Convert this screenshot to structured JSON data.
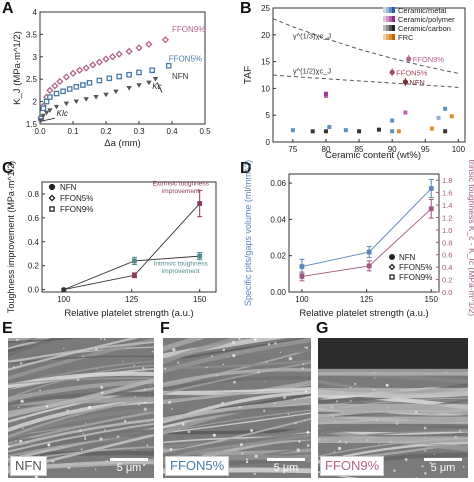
{
  "figure": {
    "panel_letters": [
      "A",
      "B",
      "C",
      "D",
      "E",
      "F",
      "G"
    ]
  },
  "chart_data": [
    {
      "panel": "A",
      "type": "scatter",
      "title": "",
      "xlabel": "Δa (mm)",
      "ylabel": "K_J (MPa·m^1/2)",
      "xlim": [
        0,
        0.5
      ],
      "ylim": [
        1.5,
        4
      ],
      "xticks": [
        "0.0",
        "0.1",
        "0.2",
        "0.3",
        "0.4",
        "0.5"
      ],
      "yticks": [
        "1.5",
        "2",
        "2.5",
        "3",
        "3.5",
        "4"
      ],
      "annotations": [
        "FFON9%",
        "FFON5%",
        "NFN",
        "Kc",
        "KIc"
      ],
      "series": [
        {
          "name": "FFON9%",
          "marker": "diamond",
          "color": "#b5628c",
          "x": [
            0.003,
            0.01,
            0.02,
            0.03,
            0.045,
            0.06,
            0.08,
            0.1,
            0.12,
            0.14,
            0.16,
            0.18,
            0.2,
            0.22,
            0.24,
            0.27,
            0.3,
            0.33,
            0.38
          ],
          "y": [
            1.62,
            1.9,
            2.1,
            2.25,
            2.35,
            2.45,
            2.55,
            2.63,
            2.7,
            2.75,
            2.82,
            2.88,
            2.95,
            3.0,
            3.06,
            3.12,
            3.2,
            3.28,
            3.38
          ]
        },
        {
          "name": "FFON5%",
          "marker": "square",
          "color": "#4a7aa8",
          "x": [
            0.003,
            0.01,
            0.02,
            0.03,
            0.05,
            0.07,
            0.09,
            0.11,
            0.13,
            0.15,
            0.18,
            0.21,
            0.24,
            0.27,
            0.3,
            0.34,
            0.39
          ],
          "y": [
            1.62,
            1.85,
            2.0,
            2.1,
            2.18,
            2.23,
            2.28,
            2.33,
            2.37,
            2.42,
            2.47,
            2.52,
            2.56,
            2.6,
            2.65,
            2.7,
            2.8
          ]
        },
        {
          "name": "NFN",
          "marker": "triangle-down",
          "color": "#555555",
          "x": [
            0.003,
            0.01,
            0.02,
            0.03,
            0.05,
            0.08,
            0.11,
            0.14,
            0.17,
            0.2,
            0.23,
            0.27,
            0.3,
            0.33,
            0.35
          ],
          "y": [
            1.58,
            1.68,
            1.75,
            1.8,
            1.88,
            1.95,
            2.0,
            2.05,
            2.1,
            2.15,
            2.22,
            2.3,
            2.36,
            2.42,
            2.5
          ]
        }
      ]
    },
    {
      "panel": "B",
      "type": "scatter",
      "title": "",
      "xlabel": "Ceramic content (wt%)",
      "ylabel": "TAF",
      "xlim": [
        72,
        101
      ],
      "ylim": [
        0,
        25
      ],
      "xticks": [
        "75",
        "80",
        "85",
        "90",
        "95",
        "100"
      ],
      "yticks": [
        "0",
        "5",
        "10",
        "15",
        "20",
        "25"
      ],
      "legend": [
        "Ceramic/metal",
        "Ceramic/polymer",
        "Ceramic/carbon",
        "FRC"
      ],
      "legend_position": "top-right",
      "legend_colors": [
        "#5b8fc9",
        "#b560b0",
        "#333333",
        "#e08a2a"
      ],
      "curve_labels": [
        "γ^(1/3)χc_J",
        "γ^(1/2)χc_J"
      ],
      "curves": [
        {
          "name": "γ^(1/3)χc_J",
          "style": "dashed",
          "x": [
            72,
            75,
            80,
            85,
            90,
            95,
            100
          ],
          "y": [
            23,
            21.5,
            19.3,
            17.3,
            15.6,
            14.1,
            12.8
          ]
        },
        {
          "name": "γ^(1/2)χc_J",
          "style": "dashed",
          "x": [
            72,
            75,
            80,
            85,
            90,
            95,
            100
          ],
          "y": [
            12.5,
            12.2,
            11.8,
            11.4,
            11.0,
            10.6,
            10.2
          ]
        }
      ],
      "highlighted": [
        {
          "name": "FFON9%",
          "x": 92.5,
          "y": 15.5,
          "color": "#b5628c"
        },
        {
          "name": "FFON5%",
          "x": 90,
          "y": 13.0,
          "color": "#a24d5c"
        },
        {
          "name": "NFN",
          "x": 92,
          "y": 11.2,
          "color": "#7a2e3b"
        }
      ],
      "points": [
        {
          "x": 75,
          "y": 2.2,
          "color": "#5b8fc9"
        },
        {
          "x": 78,
          "y": 2.0,
          "color": "#333333"
        },
        {
          "x": 80,
          "y": 2.0,
          "color": "#333333"
        },
        {
          "x": 80,
          "y": 8.6,
          "color": "#b560b0"
        },
        {
          "x": 80,
          "y": 9.0,
          "color": "#9a3a8f"
        },
        {
          "x": 80.5,
          "y": 2.8,
          "color": "#5b8fc9"
        },
        {
          "x": 83,
          "y": 2.2,
          "color": "#5b8fc9"
        },
        {
          "x": 85,
          "y": 2.0,
          "color": "#333333"
        },
        {
          "x": 88,
          "y": 2.3,
          "color": "#333333"
        },
        {
          "x": 90,
          "y": 2.0,
          "color": "#5b8fc9"
        },
        {
          "x": 90,
          "y": 4.0,
          "color": "#5b8fc9"
        },
        {
          "x": 91,
          "y": 2.0,
          "color": "#e08a2a"
        },
        {
          "x": 92,
          "y": 5.5,
          "color": "#b560b0"
        },
        {
          "x": 96,
          "y": 2.5,
          "color": "#e08a2a"
        },
        {
          "x": 97,
          "y": 4.5,
          "color": "#9ab0d5"
        },
        {
          "x": 98,
          "y": 6.2,
          "color": "#5b8fc9"
        },
        {
          "x": 98,
          "y": 2.0,
          "color": "#333333"
        },
        {
          "x": 99,
          "y": 4.8,
          "color": "#e08a2a"
        }
      ]
    },
    {
      "panel": "C",
      "type": "line",
      "title": "",
      "xlabel": "Relative platelet strength (a.u.)",
      "ylabel": "Toughness improvement (MPa·m^1/2)",
      "xlim": [
        92,
        156
      ],
      "ylim": [
        -0.02,
        0.9
      ],
      "xticks": [
        "100",
        "125",
        "150"
      ],
      "yticks": [
        "0.0",
        "0.2",
        "0.4",
        "0.6",
        "0.8"
      ],
      "x": [
        100,
        126,
        150
      ],
      "legend": [
        "NFN",
        "FFON5%",
        "FFON9%"
      ],
      "legend_position": "top-left",
      "annotations": [
        "Extrinsic toughness improvement",
        "Intrinsic toughness improvement"
      ],
      "series": [
        {
          "name": "Extrinsic toughness improvement",
          "color": "#8b3a5a",
          "values": [
            0.0,
            0.12,
            0.72
          ],
          "errors": [
            0.01,
            0.02,
            0.11
          ]
        },
        {
          "name": "Intrinsic toughness improvement",
          "color": "#4f8a8b",
          "values": [
            0.0,
            0.24,
            0.28
          ],
          "errors": [
            0.01,
            0.03,
            0.03
          ]
        }
      ]
    },
    {
      "panel": "D",
      "type": "line",
      "title": "",
      "xlabel": "Relative platelet strength (a.u.)",
      "ylabel": "Specific pits/gaps volume (ml/mm^2)",
      "ylabel_right": "Extrinsic toughness K_c - K_Ic (MPa·m^1/2)",
      "xlim": [
        95,
        153
      ],
      "ylim": [
        0,
        0.065
      ],
      "ylim_right": [
        0,
        1.9
      ],
      "xticks": [
        "100",
        "125",
        "150"
      ],
      "yticks": [
        "0.00",
        "0.02",
        "0.04",
        "0.06"
      ],
      "yticks_right": [
        "0.0",
        "0.2",
        "0.4",
        "0.6",
        "0.8",
        "1.0",
        "1.2",
        "1.4",
        "1.6",
        "1.8"
      ],
      "x": [
        100,
        126,
        150
      ],
      "legend": [
        "NFN",
        "FFON5%",
        "FFON9%"
      ],
      "legend_position": "bottom-right",
      "series": [
        {
          "name": "Specific pits/gaps volume",
          "axis": "left",
          "color": "#5b87b8",
          "values": [
            0.014,
            0.022,
            0.057
          ],
          "errors": [
            0.004,
            0.003,
            0.005
          ]
        },
        {
          "name": "Extrinsic toughness",
          "axis": "right",
          "color": "#9e5a7e",
          "values": [
            0.25,
            0.42,
            1.34
          ],
          "errors": [
            0.07,
            0.08,
            0.15
          ]
        }
      ]
    }
  ],
  "micrographs": [
    {
      "panel": "E",
      "label": "NFN",
      "scale": "5 μm"
    },
    {
      "panel": "F",
      "label": "FFON5%",
      "scale": "5 μm"
    },
    {
      "panel": "G",
      "label": "FFON9%",
      "scale": "5 μm"
    }
  ],
  "colors": {
    "ffon9": "#b5628c",
    "ffon5": "#4a7aa8",
    "nfn": "#555555"
  }
}
